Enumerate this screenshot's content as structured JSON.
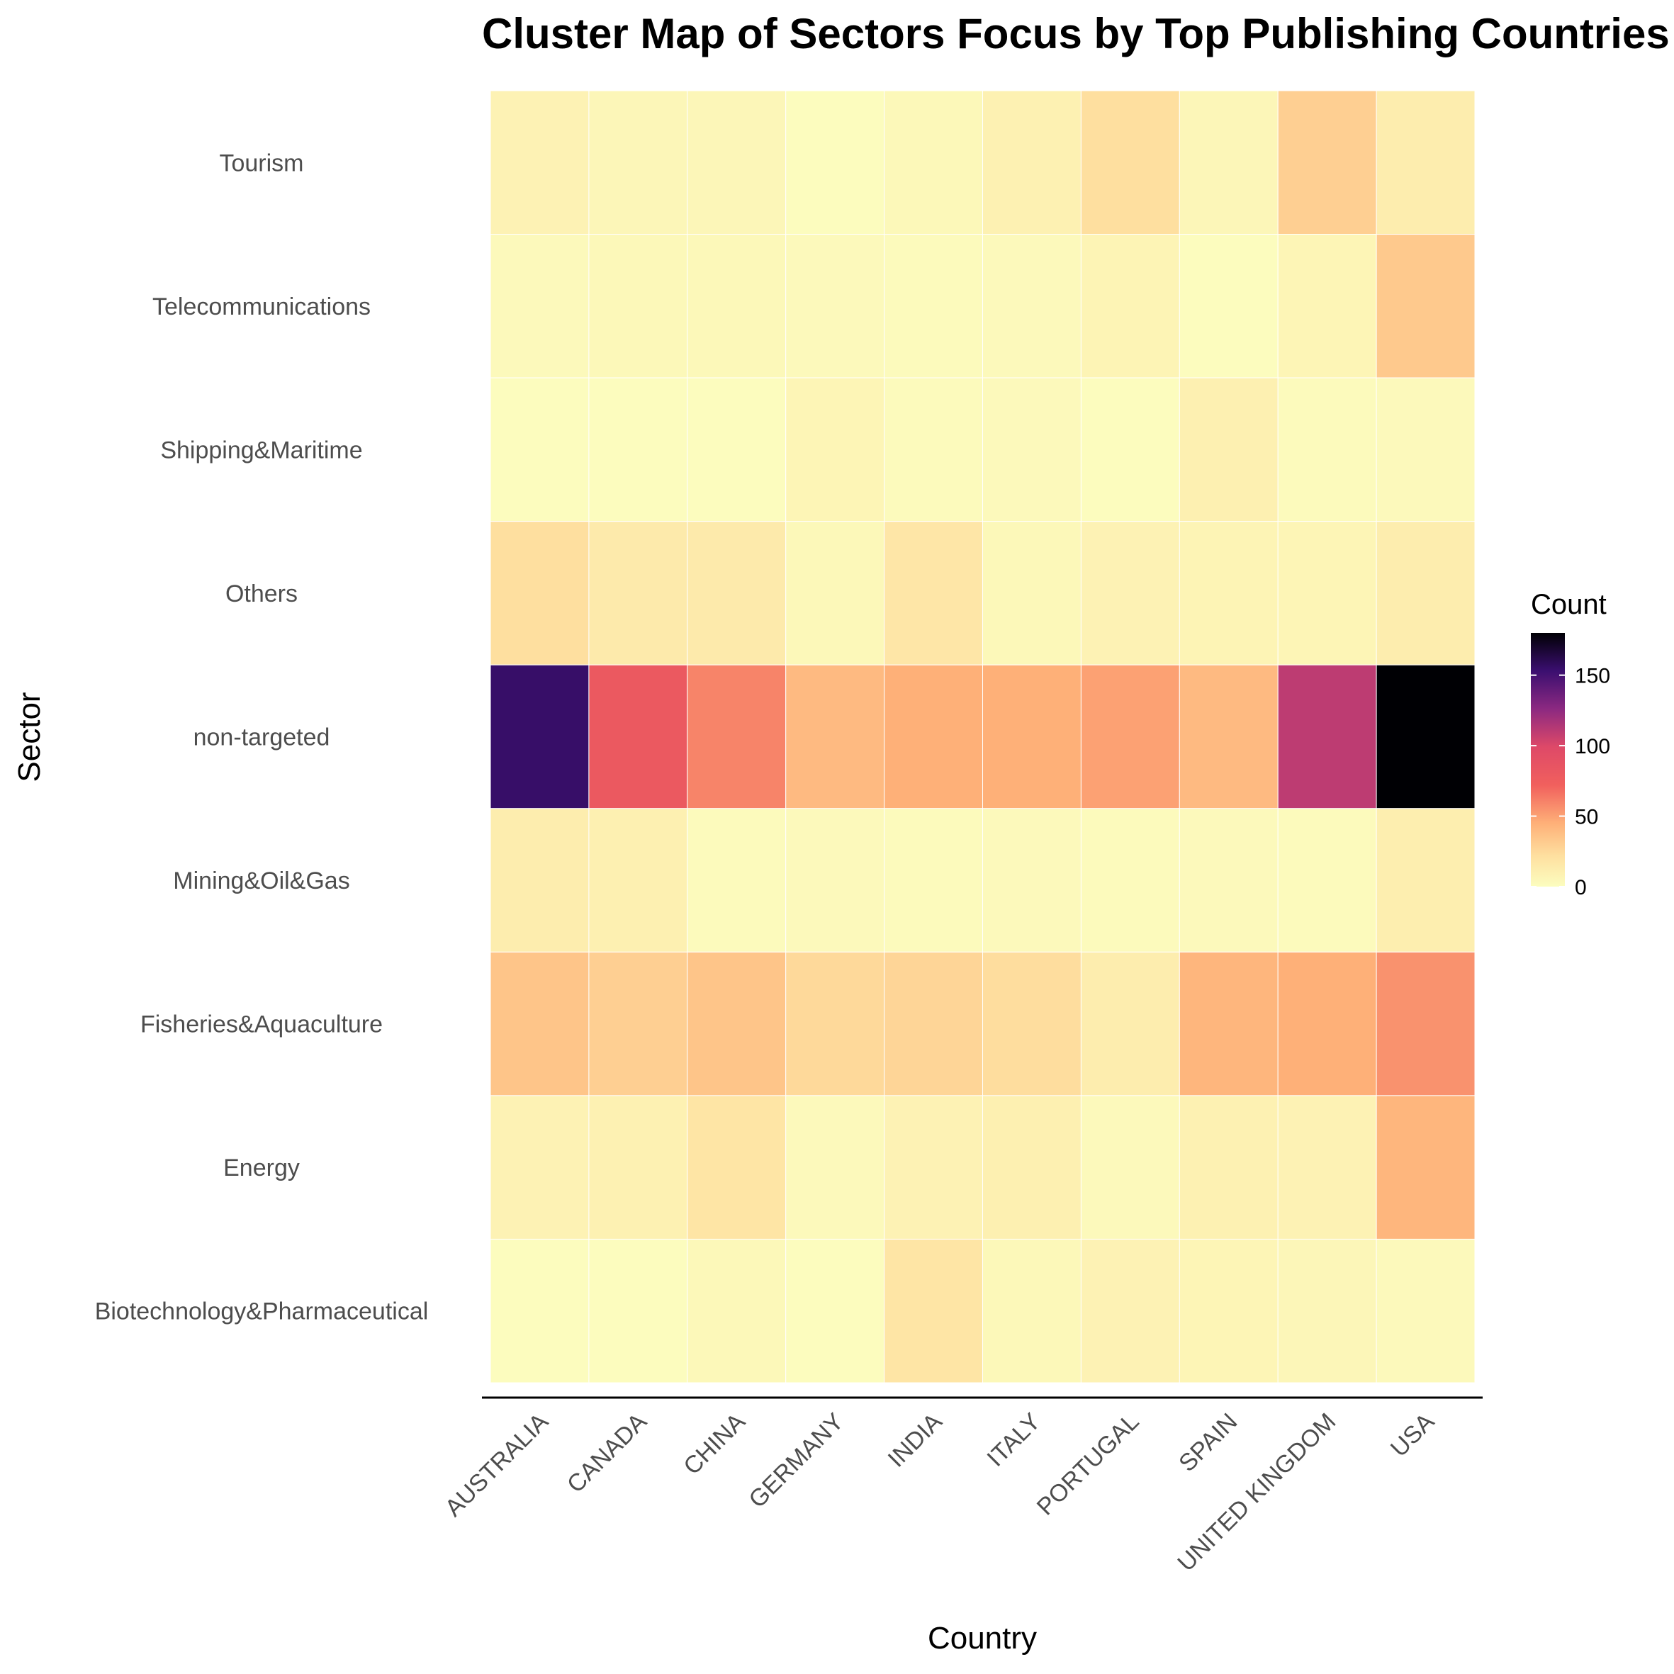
{
  "chart_data": {
    "type": "heatmap",
    "title": "Cluster Map of Sectors Focus by Top Publishing Countries",
    "xlabel": "Country",
    "ylabel": "Sector",
    "countries": [
      "AUSTRALIA",
      "CANADA",
      "CHINA",
      "GERMANY",
      "INDIA",
      "ITALY",
      "PORTUGAL",
      "SPAIN",
      "UNITED KINGDOM",
      "USA"
    ],
    "sectors": [
      "Tourism",
      "Telecommunications",
      "Shipping&Maritime",
      "Others",
      "non-targeted",
      "Mining&Oil&Gas",
      "Fisheries&Aquaculture",
      "Energy",
      "Biotechnology&Pharmaceutical"
    ],
    "values": [
      [
        8,
        5,
        5,
        1,
        4,
        9,
        22,
        5,
        30,
        12
      ],
      [
        3,
        4,
        4,
        3,
        2,
        3,
        7,
        1,
        6,
        33
      ],
      [
        1,
        1,
        1,
        6,
        2,
        3,
        1,
        10,
        2,
        3
      ],
      [
        22,
        14,
        14,
        4,
        17,
        4,
        8,
        7,
        6,
        12
      ],
      [
        155,
        80,
        60,
        40,
        45,
        45,
        50,
        40,
        110,
        180
      ],
      [
        12,
        10,
        2,
        3,
        2,
        3,
        2,
        3,
        2,
        11
      ],
      [
        35,
        30,
        35,
        25,
        27,
        23,
        12,
        42,
        45,
        55
      ],
      [
        8,
        9,
        18,
        3,
        8,
        10,
        3,
        9,
        8,
        42
      ],
      [
        1,
        1,
        4,
        1,
        18,
        4,
        8,
        6,
        5,
        3
      ]
    ],
    "legend": {
      "title": "Count",
      "ticks": [
        0,
        50,
        100,
        150
      ],
      "min": 0,
      "max": 180,
      "colormap": "magma (reversed)",
      "position": "right"
    },
    "grid": false
  }
}
